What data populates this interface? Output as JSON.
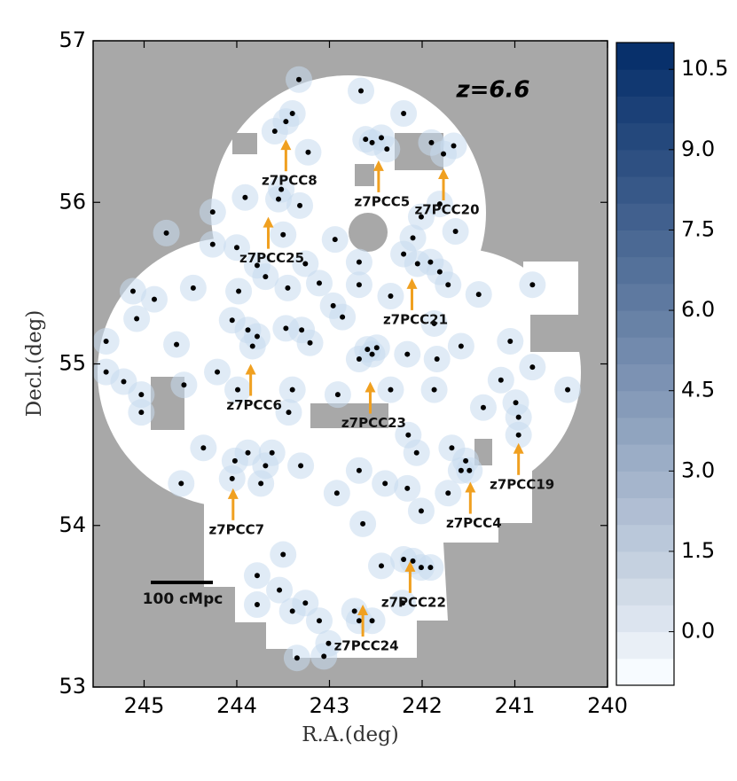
{
  "chart_data": {
    "type": "scatter",
    "x_label": "R.A.(deg)",
    "y_label": "Decl.(deg)",
    "xlim": [
      245.55,
      240
    ],
    "ylim": [
      53,
      57
    ],
    "xticks": [
      245,
      244,
      243,
      242,
      241,
      240
    ],
    "yticks": [
      53,
      54,
      55,
      56,
      57
    ],
    "color": "#000000",
    "halo_color": "#c6dbef",
    "arrow_color": "#f0a020",
    "redshift_label": "z=6.6",
    "scale_bar_label": "100 cMpc",
    "x": [
      243.33,
      243.47,
      243.4,
      243.59,
      243.23,
      242.66,
      242.61,
      242.54,
      242.44,
      242.38,
      241.66,
      241.77,
      241.9,
      242.2,
      243.52,
      243.55,
      243.91,
      243.32,
      244.26,
      241.81,
      242.01,
      241.64,
      242.1,
      242.94,
      243.5,
      244.0,
      244.26,
      244.76,
      242.2,
      242.05,
      241.91,
      241.81,
      242.68,
      243.26,
      243.78,
      243.69,
      242.68,
      243.11,
      243.45,
      243.98,
      244.47,
      244.89,
      245.12,
      241.72,
      241.39,
      240.81,
      242.34,
      242.96,
      242.86,
      241.87,
      244.05,
      243.88,
      243.78,
      243.83,
      244.65,
      245.08,
      245.41,
      243.3,
      243.47,
      243.21,
      242.59,
      242.49,
      242.54,
      242.68,
      242.16,
      241.84,
      241.58,
      241.05,
      240.81,
      240.43,
      245.41,
      245.22,
      245.03,
      244.57,
      244.21,
      243.99,
      243.4,
      242.91,
      242.34,
      241.87,
      241.34,
      241.15,
      240.96,
      240.96,
      240.99,
      245.03,
      243.44,
      242.15,
      242.06,
      241.68,
      241.53,
      241.49,
      241.58,
      244.36,
      244.02,
      244.05,
      243.88,
      243.62,
      243.69,
      243.74,
      244.6,
      243.31,
      242.68,
      242.4,
      242.16,
      242.92,
      241.72,
      242.01,
      242.64,
      243.5,
      242.2,
      242.1,
      242.01,
      241.91,
      242.44,
      242.21,
      243.78,
      243.54,
      243.78,
      243.4,
      243.26,
      242.73,
      242.68,
      242.54,
      243.01,
      243.06,
      243.35,
      243.11
    ],
    "y": [
      56.76,
      56.5,
      56.55,
      56.44,
      56.31,
      56.69,
      56.39,
      56.37,
      56.4,
      56.33,
      56.35,
      56.3,
      56.37,
      56.55,
      56.08,
      56.02,
      56.03,
      55.98,
      55.94,
      55.99,
      55.91,
      55.82,
      55.78,
      55.77,
      55.8,
      55.72,
      55.74,
      55.81,
      55.68,
      55.62,
      55.63,
      55.57,
      55.63,
      55.62,
      55.61,
      55.54,
      55.49,
      55.5,
      55.47,
      55.45,
      55.47,
      55.4,
      55.45,
      55.49,
      55.43,
      55.49,
      55.42,
      55.36,
      55.29,
      55.25,
      55.27,
      55.21,
      55.17,
      55.11,
      55.12,
      55.28,
      55.14,
      55.21,
      55.22,
      55.13,
      55.09,
      55.1,
      55.06,
      55.03,
      55.06,
      55.03,
      55.11,
      55.14,
      54.98,
      54.84,
      54.95,
      54.89,
      54.81,
      54.87,
      54.95,
      54.84,
      54.84,
      54.81,
      54.84,
      54.84,
      54.73,
      54.9,
      54.67,
      54.56,
      54.76,
      54.7,
      54.7,
      54.56,
      54.45,
      54.48,
      54.4,
      54.34,
      54.34,
      54.48,
      54.4,
      54.29,
      54.45,
      54.45,
      54.37,
      54.26,
      54.26,
      54.37,
      54.34,
      54.26,
      54.23,
      54.2,
      54.2,
      54.09,
      54.01,
      53.82,
      53.79,
      53.78,
      53.74,
      53.74,
      53.75,
      53.52,
      53.69,
      53.6,
      53.51,
      53.47,
      53.52,
      53.47,
      53.41,
      53.41,
      53.27,
      53.19,
      53.18,
      53.41
    ],
    "annotations": [
      {
        "text": "z7PCC8",
        "x": 243.47,
        "y": 56.39
      },
      {
        "text": "z7PCC5",
        "x": 242.47,
        "y": 56.26
      },
      {
        "text": "z7PCC20",
        "x": 241.77,
        "y": 56.21
      },
      {
        "text": "z7PCC25",
        "x": 243.66,
        "y": 55.91
      },
      {
        "text": "z7PCC21",
        "x": 242.11,
        "y": 55.53
      },
      {
        "text": "z7PCC6",
        "x": 243.85,
        "y": 55.0
      },
      {
        "text": "z7PCC23",
        "x": 242.56,
        "y": 54.89
      },
      {
        "text": "z7PCC19",
        "x": 240.96,
        "y": 54.51
      },
      {
        "text": "z7PCC4",
        "x": 241.48,
        "y": 54.27
      },
      {
        "text": "z7PCC7",
        "x": 244.04,
        "y": 54.23
      },
      {
        "text": "z7PCC22",
        "x": 242.13,
        "y": 53.78
      },
      {
        "text": "z7PCC24",
        "x": 242.64,
        "y": 53.51
      }
    ],
    "colorbar": {
      "clim": [
        -1,
        11
      ],
      "colors": [
        "#f7fbff",
        "#08306b"
      ],
      "ticks": [
        {
          "value": 0,
          "label": "0.0"
        },
        {
          "value": 1.5,
          "label": "1.5"
        },
        {
          "value": 3,
          "label": "3.0"
        },
        {
          "value": 4.5,
          "label": "4.5"
        },
        {
          "value": 6,
          "label": "6.0"
        },
        {
          "value": 7.5,
          "label": "7.5"
        },
        {
          "value": 9,
          "label": "9.0"
        },
        {
          "value": 10.5,
          "label": "10.5"
        }
      ]
    }
  }
}
